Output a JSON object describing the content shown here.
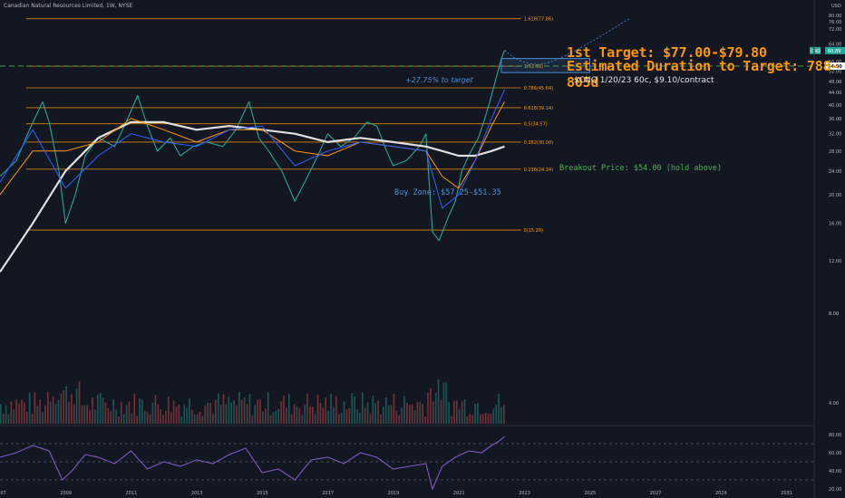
{
  "chart_title": "Canadian Natural Resources Limited, 1W, NYSE",
  "annotations": {
    "target": "1st Target: $77.00-$79.80",
    "duration": "Estimated Duration to Target: 788-805d",
    "option": "$CNQ 1/20/23 60c, $9.10/contract",
    "pct_to_target": "+27.75% to target",
    "breakout": "Breakout Price: $54.00 (hold above)",
    "buy_zone": "Buy Zone: $57.25-$51.35"
  },
  "colors": {
    "background": "#131722",
    "fib": "#ff9800",
    "buy_zone": "#4a90d9",
    "breakout": "#4caf50",
    "candle_up": "#26a69a",
    "candle_down": "#ef5350",
    "rsi": "#7e57c2",
    "ma_long": "#e0e0e0",
    "ma_blue": "#2962ff"
  },
  "chart_data": [
    {
      "type": "line",
      "title": "Canadian Natural Resources Limited, 1W, NYSE",
      "y_axis_label": "USD",
      "y_scale": "log",
      "ylim": [
        3.4,
        90
      ],
      "y_ticks": [
        4,
        8,
        12,
        16,
        20,
        24,
        28,
        32,
        36,
        40,
        44,
        48,
        52,
        56,
        60,
        64,
        72,
        76,
        80,
        84,
        88
      ],
      "x_ticks": [
        "2007",
        "2009",
        "2011",
        "2013",
        "2015",
        "2017",
        "2019",
        "2021",
        "2023",
        "2025",
        "2027",
        "2029",
        "2031"
      ],
      "series": [
        {
          "name": "CNQ",
          "x": [
            2007.0,
            2007.5,
            2007.9,
            2008.3,
            2008.5,
            2008.8,
            2009.0,
            2009.3,
            2009.6,
            2010.0,
            2010.5,
            2010.9,
            2011.2,
            2011.5,
            2011.8,
            2012.2,
            2012.5,
            2012.9,
            2013.3,
            2013.8,
            2014.2,
            2014.6,
            2014.9,
            2015.2,
            2015.6,
            2016.0,
            2016.3,
            2016.7,
            2017.0,
            2017.4,
            2017.8,
            2018.2,
            2018.5,
            2018.8,
            2019.0,
            2019.4,
            2019.8,
            2020.0,
            2020.2,
            2020.4,
            2020.7,
            2020.9,
            2021.1,
            2021.3,
            2021.6,
            2021.8,
            2022.0,
            2022.2,
            2022.3,
            2022.4
          ],
          "values": [
            23,
            26,
            33,
            41,
            35,
            24,
            16,
            20,
            27,
            31,
            29,
            36,
            43,
            34,
            28,
            31,
            27,
            29,
            30,
            29,
            33,
            41,
            31,
            28,
            24,
            19,
            22,
            27,
            32,
            29,
            31,
            35,
            34,
            28,
            25,
            26,
            29,
            32,
            15,
            14,
            17,
            19,
            24,
            27,
            31,
            36,
            43,
            52,
            57,
            61
          ]
        },
        {
          "name": "",
          "color": "#e0e0e0",
          "x": [
            2007.0,
            2008.0,
            2009.0,
            2010.0,
            2011.0,
            2012.0,
            2013.0,
            2014.0,
            2015.0,
            2016.0,
            2017.0,
            2018.0,
            2019.0,
            2020.0,
            2020.5,
            2021.0,
            2021.5,
            2022.0,
            2022.4
          ],
          "values": [
            11,
            16,
            24,
            31,
            35,
            35,
            33,
            34,
            33,
            32,
            30,
            31,
            30,
            29,
            28,
            27,
            27,
            28,
            29
          ]
        },
        {
          "name": "",
          "color": "#ff9800",
          "x": [
            2007.0,
            2008.0,
            2009.0,
            2010.0,
            2011.0,
            2012.0,
            2013.0,
            2014.0,
            2015.0,
            2016.0,
            2017.0,
            2018.0,
            2019.0,
            2020.0,
            2020.5,
            2021.0,
            2021.5,
            2022.0,
            2022.4
          ],
          "values": [
            20,
            28,
            28,
            30,
            36,
            33,
            30,
            33,
            33,
            28,
            27,
            30,
            29,
            28,
            23,
            21,
            26,
            34,
            41
          ]
        },
        {
          "name": "",
          "color": "#2962ff",
          "x": [
            2007.0,
            2008.0,
            2009.0,
            2010.0,
            2011.0,
            2012.0,
            2013.0,
            2014.0,
            2015.0,
            2016.0,
            2017.0,
            2018.0,
            2019.0,
            2020.0,
            2020.5,
            2021.0,
            2021.5,
            2022.0,
            2022.4
          ],
          "values": [
            22,
            33,
            21,
            27,
            32,
            30,
            29,
            33,
            34,
            25,
            28,
            30,
            29,
            28,
            18,
            20,
            26,
            36,
            45
          ]
        }
      ],
      "fib_levels": [
        {
          "label": "1.618(77.86)",
          "value": 77.86
        },
        {
          "label": "1(53.93)",
          "value": 53.93
        },
        {
          "label": "0.786(45.64)",
          "value": 45.64
        },
        {
          "label": "0.618(39.14)",
          "value": 39.14
        },
        {
          "label": "0.5(34.57)",
          "value": 34.57
        },
        {
          "label": "0.382(30.00)",
          "value": 30.0
        },
        {
          "label": "0.236(24.34)",
          "value": 24.34
        },
        {
          "label": "0(15.20)",
          "value": 15.2
        }
      ],
      "breakout_level": 54.0,
      "buy_zone": [
        51.35,
        57.25
      ],
      "last_price_label": "CNQ",
      "last_price_value": "60.89",
      "breakout_badge": "54.00"
    },
    {
      "type": "line",
      "title": "",
      "ylim": [
        20,
        88
      ],
      "y_ticks": [
        20,
        40,
        60,
        80
      ],
      "levels": [
        70,
        50,
        30
      ],
      "series": [
        {
          "name": "",
          "color": "#7e57c2",
          "x": [
            2007.0,
            2007.5,
            2008.0,
            2008.5,
            2008.9,
            2009.2,
            2009.6,
            2010.0,
            2010.5,
            2011.0,
            2011.5,
            2012.0,
            2012.5,
            2013.0,
            2013.5,
            2014.0,
            2014.5,
            2015.0,
            2015.5,
            2016.0,
            2016.5,
            2017.0,
            2017.5,
            2018.0,
            2018.5,
            2019.0,
            2019.5,
            2020.0,
            2020.2,
            2020.5,
            2020.9,
            2021.3,
            2021.7,
            2022.0,
            2022.2,
            2022.4
          ],
          "values": [
            55,
            60,
            68,
            62,
            30,
            40,
            58,
            55,
            48,
            62,
            42,
            50,
            45,
            52,
            48,
            58,
            65,
            38,
            42,
            30,
            52,
            55,
            48,
            60,
            55,
            42,
            45,
            48,
            20,
            45,
            55,
            62,
            60,
            68,
            72,
            78
          ]
        }
      ]
    }
  ]
}
